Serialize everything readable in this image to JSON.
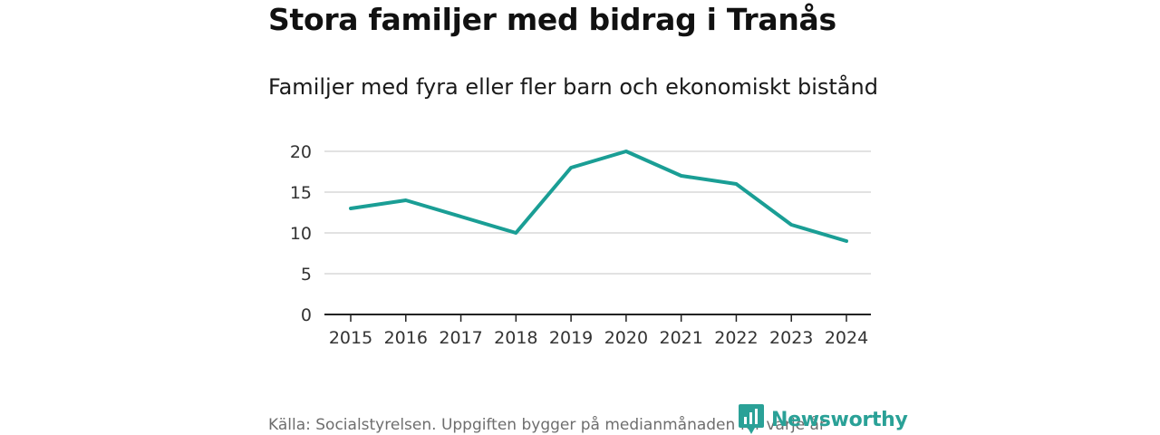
{
  "header": {
    "title": "Stora familjer med bidrag i Tranås",
    "subtitle": "Familjer med fyra eller fler barn och ekonomiskt bistånd"
  },
  "footer": {
    "source": "Källa: Socialstyrelsen. Uppgiften bygger på medianmånaden för varje år",
    "logo_text": "Newsworthy"
  },
  "colors": {
    "line": "#1a9e95",
    "grid": "#d9d9d9",
    "axis": "#222222",
    "logo": "#2aa197"
  },
  "chart_data": {
    "type": "line",
    "title": "Stora familjer med bidrag i Tranås",
    "subtitle": "Familjer med fyra eller fler barn och ekonomiskt bistånd",
    "xlabel": "",
    "ylabel": "",
    "categories": [
      "2015",
      "2016",
      "2017",
      "2018",
      "2019",
      "2020",
      "2021",
      "2022",
      "2023",
      "2024"
    ],
    "series": [
      {
        "name": "Familjer med fyra eller fler barn och ekonomiskt bistånd",
        "values": [
          13,
          14,
          12,
          10,
          18,
          20,
          17,
          16,
          11,
          9
        ]
      }
    ],
    "ylim": [
      0,
      20
    ],
    "yticks": [
      0,
      5,
      10,
      15,
      20
    ],
    "grid": true,
    "legend": "none"
  }
}
